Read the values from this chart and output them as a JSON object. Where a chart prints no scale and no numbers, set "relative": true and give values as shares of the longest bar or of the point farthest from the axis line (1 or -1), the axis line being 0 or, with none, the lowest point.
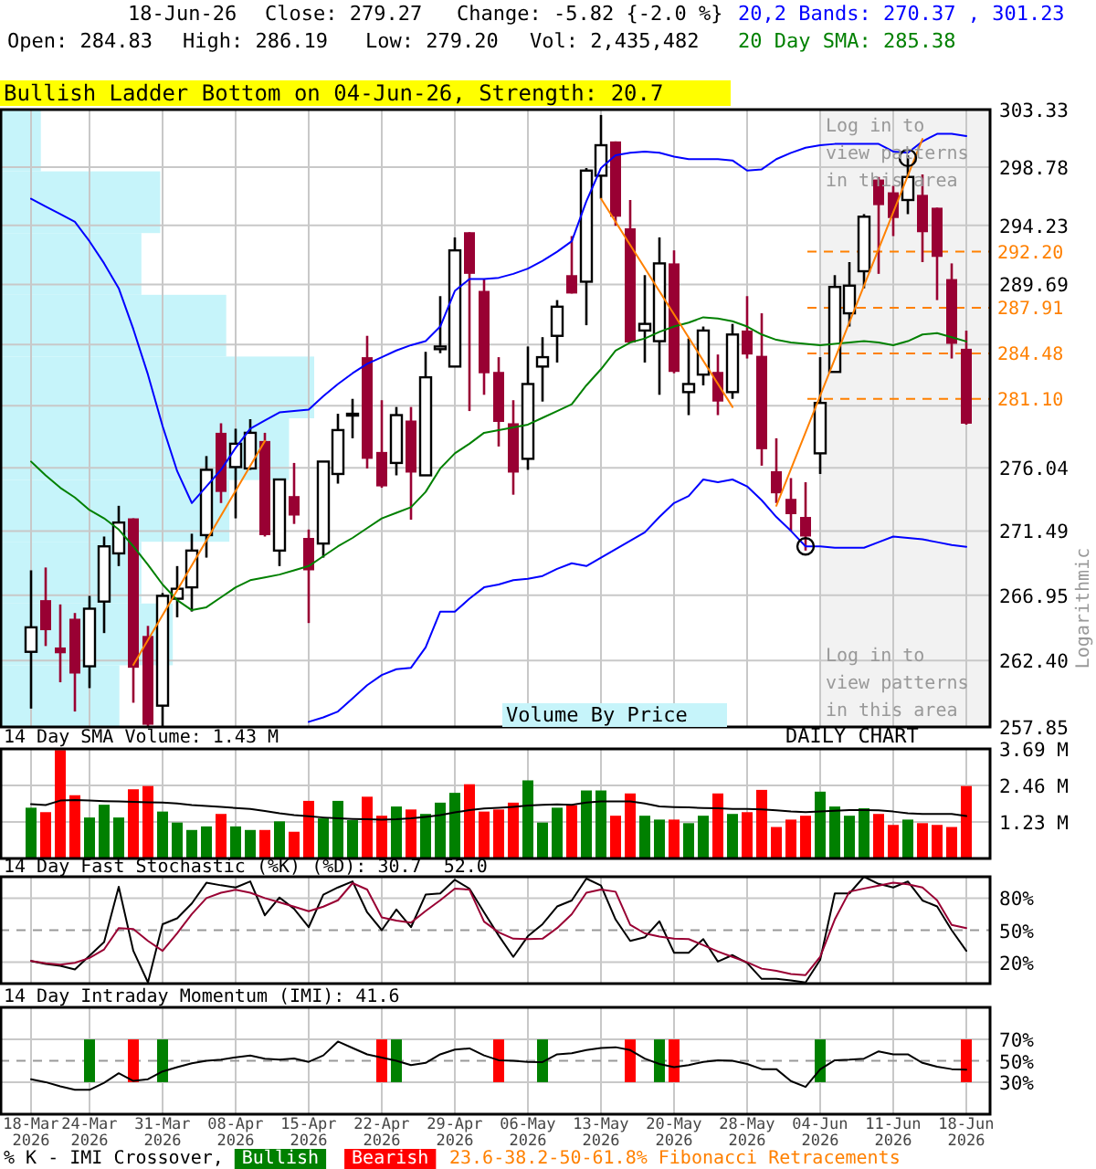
{
  "chart_data": [
    {
      "type": "candlestick",
      "title": "Bullish Ladder Bottom on 04-Jun-26, Strength: 20.7",
      "ylabel": "Logarithmic",
      "annotations": [
        "18-Jun-26",
        "Close: 279.27",
        "Change: -5.82 {-2.0 %}",
        "Open: 284.83",
        "High: 286.19",
        "Low: 279.20",
        "Vol: 2,435,482",
        "Log in to view patterns in this area",
        "Log in to view patterns in this area",
        "23.6-38.2-50-61.8% Fibonacci Retracements",
        "Volume By Price"
      ],
      "categories": [
        null,
        null,
        null,
        null,
        null,
        null,
        null,
        null,
        null,
        null,
        null,
        null,
        null,
        null,
        null,
        null,
        null,
        null,
        null,
        null,
        null,
        null,
        null,
        null,
        null,
        null,
        null,
        null,
        null,
        null,
        null,
        null,
        null,
        null,
        null,
        null,
        null,
        null,
        null,
        null,
        null,
        null,
        null,
        null,
        null,
        null,
        null,
        null,
        null,
        null,
        null,
        null,
        null,
        null,
        null,
        null,
        null,
        null,
        null,
        null,
        null,
        null,
        null,
        null,
        null
      ],
      "ohlc": [
        [
          263.0,
          268.7,
          259.1,
          264.7
        ],
        [
          266.6,
          268.9,
          263.4,
          264.5
        ],
        [
          263.3,
          266.3,
          260.9,
          262.9
        ],
        [
          265.3,
          265.7,
          258.9,
          261.5
        ],
        [
          262.0,
          266.9,
          260.5,
          266.0
        ],
        [
          266.5,
          271.1,
          264.3,
          270.4
        ],
        [
          269.9,
          273.3,
          269.0,
          272.1
        ],
        [
          272.4,
          272.4,
          259.5,
          261.9
        ],
        [
          264.1,
          264.8,
          257.9,
          258.0
        ],
        [
          259.3,
          267.1,
          257.9,
          266.9
        ],
        [
          266.7,
          269.0,
          265.4,
          267.4
        ],
        [
          267.5,
          271.3,
          265.8,
          270.1
        ],
        [
          271.2,
          276.9,
          269.6,
          275.9
        ],
        [
          278.6,
          279.3,
          273.5,
          274.3
        ],
        [
          276.1,
          278.9,
          272.4,
          277.8
        ],
        [
          276.0,
          279.6,
          275.9,
          278.6
        ],
        [
          278.0,
          278.6,
          271.1,
          271.2
        ],
        [
          270.1,
          275.2,
          269.0,
          275.2
        ],
        [
          274.0,
          276.4,
          272.0,
          272.6
        ],
        [
          271.0,
          271.6,
          265.0,
          268.7
        ],
        [
          270.6,
          276.5,
          269.6,
          276.5
        ],
        [
          275.6,
          280.0,
          274.9,
          278.8
        ],
        [
          279.9,
          281.1,
          278.2,
          280.0
        ],
        [
          284.2,
          285.8,
          276.0,
          276.7
        ],
        [
          277.2,
          281.0,
          274.6,
          274.7
        ],
        [
          276.4,
          280.5,
          275.5,
          279.9
        ],
        [
          279.5,
          280.5,
          272.3,
          275.7
        ],
        [
          275.5,
          284.6,
          275.5,
          282.7
        ],
        [
          284.8,
          288.8,
          284.5,
          285.0
        ],
        [
          283.5,
          293.3,
          283.5,
          292.3
        ],
        [
          293.7,
          293.7,
          280.2,
          290.5
        ],
        [
          289.2,
          290.1,
          281.4,
          283.0
        ],
        [
          283.1,
          284.2,
          277.6,
          279.4
        ],
        [
          279.3,
          281.0,
          274.1,
          275.7
        ],
        [
          276.7,
          285.0,
          275.9,
          282.2
        ],
        [
          283.5,
          285.7,
          280.9,
          284.2
        ],
        [
          285.8,
          288.5,
          283.8,
          288.0
        ],
        [
          290.4,
          293.4,
          289.0,
          289.0
        ],
        [
          289.9,
          298.7,
          286.6,
          298.5
        ],
        [
          298.1,
          302.9,
          296.3,
          300.5
        ],
        [
          300.8,
          300.8,
          294.2,
          294.9
        ],
        [
          294.0,
          296.2,
          285.3,
          285.3
        ],
        [
          286.2,
          290.4,
          283.8,
          286.7
        ],
        [
          285.4,
          293.3,
          281.4,
          291.3
        ],
        [
          291.3,
          292.3,
          283.0,
          283.1
        ],
        [
          281.6,
          285.6,
          279.9,
          282.2
        ],
        [
          282.9,
          286.5,
          282.1,
          286.2
        ],
        [
          283.1,
          284.4,
          279.9,
          280.9
        ],
        [
          281.6,
          286.7,
          281.1,
          285.9
        ],
        [
          286.2,
          288.8,
          284.1,
          284.4
        ],
        [
          284.3,
          287.5,
          276.2,
          277.4
        ],
        [
          275.8,
          278.2,
          273.5,
          274.2
        ],
        [
          273.8,
          275.3,
          271.5,
          272.7
        ],
        [
          272.5,
          275.0,
          270.1,
          271.1
        ],
        [
          277.1,
          284.2,
          275.6,
          280.8
        ],
        [
          283.1,
          290.4,
          283.1,
          289.5
        ],
        [
          287.5,
          291.4,
          286.5,
          289.6
        ],
        [
          290.7,
          295.1,
          289.4,
          294.9
        ],
        [
          297.8,
          298.0,
          290.5,
          295.8
        ],
        [
          296.8,
          297.3,
          293.4,
          294.8
        ],
        [
          296.2,
          299.7,
          295.1,
          298.0
        ],
        [
          296.6,
          298.2,
          291.4,
          293.7
        ],
        [
          295.6,
          295.6,
          288.5,
          291.8
        ],
        [
          290.1,
          291.3,
          284.1,
          285.2
        ],
        [
          284.83,
          286.19,
          279.2,
          279.27
        ]
      ],
      "series": [
        {
          "type": "line",
          "name": "20,2 Bands: 270.37 , 301.23",
          "color": "#0000ff",
          "values": [
            296.3,
            295.7,
            295.1,
            294.5,
            293.0,
            291.3,
            289.4,
            286.3,
            282.9,
            279.1,
            275.8,
            273.5,
            274.7,
            275.9,
            277.5,
            278.9,
            279.5,
            280.1,
            280.2,
            280.3,
            281.3,
            282.2,
            283.0,
            283.7,
            284.2,
            284.7,
            285.1,
            285.4,
            286.5,
            289.2,
            290.1,
            290.1,
            290.2,
            290.5,
            290.9,
            291.5,
            292.2,
            293.0,
            296.1,
            298.7,
            299.7,
            299.9,
            300.0,
            299.9,
            299.6,
            299.4,
            299.4,
            299.4,
            299.3,
            298.5,
            298.6,
            299.4,
            299.9,
            300.3,
            300.5,
            300.6,
            300.6,
            300.6,
            300.6,
            300.0,
            299.9,
            300.8,
            301.4,
            301.4,
            301.23
          ]
        },
        {
          "type": "line",
          "name": "20 Day SMA: 285.38",
          "color": "#008000",
          "values": [
            276.5,
            275.5,
            274.6,
            273.9,
            273.0,
            272.4,
            271.6,
            270.4,
            269.1,
            267.7,
            266.6,
            265.9,
            266.1,
            266.8,
            267.5,
            268.0,
            268.2,
            268.4,
            268.7,
            269.0,
            269.7,
            270.4,
            271.0,
            271.7,
            272.4,
            272.8,
            273.2,
            274.3,
            276.0,
            277.1,
            277.8,
            278.6,
            278.8,
            279.0,
            279.2,
            279.7,
            280.2,
            280.7,
            282.1,
            283.3,
            284.7,
            285.3,
            285.6,
            286.1,
            286.5,
            286.8,
            287.2,
            287.1,
            286.9,
            286.5,
            285.9,
            285.5,
            285.3,
            285.2,
            285.1,
            285.2,
            285.3,
            285.4,
            285.3,
            285.1,
            285.4,
            285.9,
            286.0,
            285.7,
            285.38
          ]
        },
        {
          "type": "line",
          "color": "#0000ff",
          "values": [
            null,
            null,
            null,
            null,
            null,
            null,
            null,
            null,
            null,
            null,
            null,
            null,
            null,
            null,
            null,
            null,
            null,
            null,
            null,
            258.2,
            258.5,
            258.9,
            259.8,
            260.7,
            261.4,
            261.8,
            261.9,
            263.3,
            265.8,
            265.8,
            266.7,
            267.5,
            267.7,
            268.0,
            268.1,
            268.3,
            268.8,
            269.2,
            269.0,
            269.6,
            270.2,
            270.8,
            271.4,
            272.5,
            273.5,
            274.0,
            275.2,
            275.0,
            275.2,
            274.7,
            273.7,
            272.5,
            271.5,
            270.4,
            270.4,
            270.3,
            270.3,
            270.3,
            270.7,
            271.1,
            271.0,
            270.9,
            270.7,
            270.5,
            270.37
          ]
        },
        {
          "type": "line",
          "color": "#ff8000",
          "values": [
            null,
            null,
            null,
            null,
            null,
            null,
            null,
            262.1,
            null,
            null,
            null,
            null,
            null,
            null,
            null,
            null,
            278.0,
            null,
            null,
            null,
            null,
            null,
            null,
            null,
            null,
            null,
            null,
            null,
            null,
            null,
            null,
            null,
            null,
            null,
            null,
            null,
            null,
            null,
            null,
            null,
            null,
            null,
            null,
            null,
            null,
            null,
            null,
            null,
            null,
            null,
            null,
            null,
            null,
            null,
            null,
            null,
            null,
            null,
            null,
            null,
            null,
            null,
            null,
            null,
            null
          ]
        },
        {
          "type": "line",
          "color": "#ff8000",
          "values": [
            null,
            null,
            null,
            null,
            null,
            null,
            null,
            null,
            null,
            null,
            null,
            null,
            null,
            null,
            null,
            null,
            null,
            null,
            null,
            null,
            null,
            null,
            null,
            null,
            null,
            null,
            null,
            null,
            null,
            null,
            null,
            null,
            null,
            null,
            null,
            null,
            null,
            null,
            null,
            296.3,
            null,
            null,
            null,
            null,
            null,
            null,
            null,
            null,
            280.5,
            null,
            null,
            null,
            null,
            null,
            null,
            null,
            null,
            null,
            null,
            null,
            null,
            null,
            null,
            null,
            null
          ]
        },
        {
          "type": "line",
          "color": "#ff8000",
          "values": [
            null,
            null,
            null,
            null,
            null,
            null,
            null,
            null,
            null,
            null,
            null,
            null,
            null,
            null,
            null,
            null,
            null,
            null,
            null,
            null,
            null,
            null,
            null,
            null,
            null,
            null,
            null,
            null,
            null,
            null,
            null,
            null,
            null,
            null,
            null,
            null,
            null,
            null,
            null,
            null,
            null,
            null,
            null,
            null,
            null,
            null,
            null,
            null,
            null,
            null,
            null,
            273.3,
            null,
            null,
            null,
            null,
            null,
            null,
            null,
            null,
            null,
            301.0,
            null,
            null,
            null
          ]
        },
        {
          "type": "scatter",
          "color": "#000000",
          "marker": "circle",
          "values": [
            null,
            null,
            null,
            null,
            null,
            null,
            null,
            null,
            null,
            null,
            null,
            null,
            null,
            null,
            null,
            null,
            null,
            null,
            null,
            null,
            null,
            null,
            null,
            null,
            null,
            null,
            null,
            null,
            null,
            null,
            null,
            null,
            null,
            null,
            null,
            null,
            null,
            null,
            null,
            null,
            null,
            null,
            null,
            null,
            null,
            null,
            null,
            null,
            null,
            null,
            null,
            null,
            null,
            270.4,
            null,
            null,
            null,
            null,
            null,
            null,
            299.5,
            null,
            null,
            null,
            null
          ]
        }
      ],
      "ylim": [
        257.85,
        303.33
      ],
      "yticks": [
        303.33,
        298.78,
        294.23,
        289.69,
        {
          "value": 285.14,
          "label": null
        },
        {
          "value": 280.59,
          "label": null
        },
        276.04,
        271.49,
        266.95,
        {
          "value": 262.4,
          "label": "262.40"
        },
        257.85
      ],
      "log": true,
      "grid": true,
      "legend": "top right",
      "tick_labels": "y",
      "ref_lines": [
        {
          "axis": "y",
          "value": 292.2,
          "label": "292.20",
          "color": "#ff8000",
          "line_style": "dashed"
        },
        {
          "axis": "y",
          "value": 287.91,
          "label": "287.91",
          "color": "#ff8000",
          "line_style": "dashed"
        },
        {
          "axis": "y",
          "value": 284.48,
          "label": "284.48",
          "color": "#ff8000",
          "line_style": "dashed"
        },
        {
          "axis": "y",
          "value": 281.1,
          "label": "281.10",
          "color": "#ff8000",
          "line_style": "dashed"
        }
      ]
    },
    {
      "type": "bar",
      "orientation": "horizontal",
      "relative": true,
      "categories": [
        null,
        null,
        null,
        null,
        null,
        null,
        null,
        null,
        null,
        null
      ],
      "values": [
        0.13,
        0.51,
        0.45,
        0.72,
        1,
        0.92,
        0.73,
        0.45,
        0.55,
        0.38
      ],
      "color": "#c6f4fa",
      "tick_labels": false
    },
    {
      "type": "bar",
      "title": "14 Day SMA Volume: 1.43 M",
      "annotations": [
        "DAILY CHART"
      ],
      "categories": [
        null,
        null,
        null,
        null,
        null,
        null,
        null,
        null,
        null,
        null,
        null,
        null,
        null,
        null,
        null,
        null,
        null,
        null,
        null,
        null,
        null,
        null,
        null,
        null,
        null,
        null,
        null,
        null,
        null,
        null,
        null,
        null,
        null,
        null,
        null,
        null,
        null,
        null,
        null,
        null,
        null,
        null,
        null,
        null,
        null,
        null,
        null,
        null,
        null,
        null,
        null,
        null,
        null,
        null,
        null,
        null,
        null,
        null,
        null,
        null,
        null,
        null,
        null,
        null,
        null
      ],
      "series": [
        {
          "colors": [
            "#008000",
            "#ff0000",
            "#ff0000",
            "#ff0000",
            "#008000",
            "#008000",
            "#008000",
            "#ff0000",
            "#ff0000",
            "#008000",
            "#008000",
            "#008000",
            "#008000",
            "#ff0000",
            "#008000",
            "#008000",
            "#ff0000",
            "#008000",
            "#ff0000",
            "#ff0000",
            "#008000",
            "#008000",
            "#008000",
            "#ff0000",
            "#ff0000",
            "#008000",
            "#ff0000",
            "#008000",
            "#008000",
            "#008000",
            "#ff0000",
            "#ff0000",
            "#ff0000",
            "#ff0000",
            "#008000",
            "#008000",
            "#008000",
            "#ff0000",
            "#008000",
            "#008000",
            "#ff0000",
            "#ff0000",
            "#008000",
            "#008000",
            "#ff0000",
            "#008000",
            "#008000",
            "#ff0000",
            "#008000",
            "#ff0000",
            "#ff0000",
            "#ff0000",
            "#ff0000",
            "#ff0000",
            "#008000",
            "#008000",
            "#008000",
            "#008000",
            "#ff0000",
            "#ff0000",
            "#008000",
            "#ff0000",
            "#ff0000",
            "#ff0000",
            "#ff0000"
          ],
          "values": [
            1.71,
            1.56,
            3.65,
            2.13,
            1.38,
            1.81,
            1.38,
            2.33,
            2.44,
            1.58,
            1.21,
            0.96,
            1.08,
            1.5,
            1.08,
            0.96,
            0.96,
            1.25,
            0.9,
            1.94,
            1.35,
            1.94,
            1.29,
            2.08,
            1.44,
            1.75,
            1.65,
            1.5,
            1.88,
            2.21,
            2.5,
            1.58,
            1.65,
            1.88,
            2.63,
            1.21,
            1.71,
            1.79,
            2.29,
            2.29,
            1.44,
            2.19,
            1.44,
            1.31,
            1.31,
            1.19,
            1.44,
            2.19,
            1.5,
            1.56,
            2.31,
            1.06,
            1.31,
            1.44,
            2.25,
            1.75,
            1.44,
            1.69,
            1.5,
            1.13,
            1.31,
            1.19,
            1.13,
            1.06,
            2.44
          ]
        },
        {
          "type": "line",
          "color": "#000000",
          "values": [
            1.83,
            1.8,
            1.95,
            1.97,
            1.95,
            1.93,
            1.92,
            1.91,
            1.89,
            1.88,
            1.85,
            1.8,
            1.77,
            1.74,
            1.7,
            1.67,
            1.6,
            1.52,
            1.46,
            1.42,
            1.38,
            1.35,
            1.33,
            1.32,
            1.31,
            1.32,
            1.35,
            1.4,
            1.46,
            1.55,
            1.63,
            1.68,
            1.71,
            1.74,
            1.78,
            1.81,
            1.82,
            1.81,
            1.88,
            1.92,
            1.92,
            1.92,
            1.85,
            1.75,
            1.73,
            1.72,
            1.7,
            1.69,
            1.67,
            1.67,
            1.65,
            1.62,
            1.58,
            1.56,
            1.58,
            1.61,
            1.63,
            1.63,
            1.62,
            1.58,
            1.52,
            1.5,
            1.5,
            1.5,
            1.43
          ]
        }
      ],
      "ylim": [
        0,
        3.69
      ],
      "yticks": [
        {
          "value": 1.23,
          "label": "1.23 M"
        },
        {
          "value": 2.46,
          "label": "2.46 M"
        },
        {
          "value": 3.69,
          "label": "3.69 M"
        }
      ],
      "grid": true,
      "tick_labels": "y"
    },
    {
      "type": "line",
      "title": "14 Day Fast Stochastic (%K) (%D): 30.7  52.0",
      "categories": [
        null,
        null,
        null,
        null,
        null,
        null,
        null,
        null,
        null,
        null,
        null,
        null,
        null,
        null,
        null,
        null,
        null,
        null,
        null,
        null,
        null,
        null,
        null,
        null,
        null,
        null,
        null,
        null,
        null,
        null,
        null,
        null,
        null,
        null,
        null,
        null,
        null,
        null,
        null,
        null,
        null,
        null,
        null,
        null,
        null,
        null,
        null,
        null,
        null,
        null,
        null,
        null,
        null,
        null,
        null,
        null,
        null,
        null,
        null,
        null,
        null,
        null,
        null,
        null,
        null
      ],
      "series": [
        {
          "color": "#000000",
          "values": [
            21.1,
            18.3,
            16.7,
            13.3,
            26,
            38.9,
            90.6,
            30.6,
            1.1,
            55.6,
            61.1,
            75,
            94.4,
            92,
            90,
            95.6,
            63.9,
            80.6,
            70,
            52.8,
            83.3,
            90,
            95.6,
            66.7,
            50,
            69.4,
            52.8,
            83.3,
            84.4,
            97.2,
            88.9,
            66.7,
            45,
            25,
            44.4,
            55.6,
            72.2,
            77.8,
            98.3,
            91.7,
            60,
            40,
            43.3,
            58.3,
            28.9,
            28.9,
            41.7,
            20.6,
            26.7,
            19.4,
            4.4,
            4.4,
            3,
            1.1,
            22.2,
            84.4,
            84.4,
            100,
            93.3,
            90,
            95.6,
            77.8,
            72.2,
            50,
            30.7
          ]
        },
        {
          "color": "#990033",
          "values": [
            21.1,
            19,
            17.8,
            19.4,
            24,
            32,
            52,
            51.1,
            40,
            30.6,
            47.2,
            65,
            80,
            85,
            87.8,
            85,
            80,
            76,
            72,
            67.8,
            72,
            78,
            94,
            88,
            62,
            59,
            57,
            68,
            78,
            88.9,
            88,
            58,
            48,
            42,
            41.7,
            42,
            52,
            65,
            85,
            88,
            86,
            55,
            47,
            44,
            42,
            41.7,
            36,
            30,
            25,
            20,
            14,
            12,
            9,
            8,
            25,
            60,
            86,
            89,
            91.7,
            94.4,
            93,
            90,
            78,
            55,
            52.0
          ]
        }
      ],
      "ylim": [
        0,
        100
      ],
      "yticks": [
        {
          "value": 20,
          "label": "20%"
        },
        {
          "value": 50,
          "label": "50%"
        },
        {
          "value": 80,
          "label": "80%"
        }
      ],
      "grid": true,
      "tick_labels": "y",
      "ref_lines": [
        {
          "axis": "y",
          "value": 50,
          "color": "#999999",
          "line_style": "dashed"
        }
      ]
    },
    {
      "type": "line",
      "title": "14 Day Intraday Momentum (IMI): 41.6",
      "legend_title": "% K - IMI Crossover,",
      "legend": "bottom",
      "categories": [
        "18-Mar 2026",
        null,
        null,
        null,
        "24-Mar 2026",
        null,
        null,
        null,
        null,
        "31-Mar 2026",
        null,
        null,
        null,
        null,
        "08-Apr 2026",
        null,
        null,
        null,
        null,
        "15-Apr 2026",
        null,
        null,
        null,
        null,
        "22-Apr 2026",
        null,
        null,
        null,
        null,
        "29-Apr 2026",
        null,
        null,
        null,
        null,
        "06-May 2026",
        null,
        null,
        null,
        null,
        "13-May 2026",
        null,
        null,
        null,
        null,
        "20-May 2026",
        null,
        null,
        null,
        null,
        "28-May 2026",
        null,
        null,
        null,
        null,
        "04-Jun 2026",
        null,
        null,
        null,
        null,
        "11-Jun 2026",
        null,
        null,
        null,
        null,
        "18-Jun 2026"
      ],
      "series": [
        {
          "type": "bar",
          "name": "Bullish",
          "color": "#008000",
          "base": [
            null,
            null,
            null,
            null,
            30,
            null,
            null,
            null,
            null,
            30,
            null,
            null,
            null,
            null,
            null,
            null,
            null,
            null,
            null,
            null,
            null,
            null,
            null,
            null,
            null,
            30,
            null,
            null,
            null,
            null,
            null,
            null,
            null,
            null,
            null,
            30,
            null,
            null,
            null,
            null,
            null,
            null,
            null,
            30,
            null,
            null,
            null,
            null,
            null,
            null,
            null,
            null,
            null,
            null,
            30,
            null,
            null,
            null,
            null,
            null,
            null,
            null,
            null,
            null,
            null
          ],
          "values": [
            null,
            null,
            null,
            null,
            40,
            null,
            null,
            null,
            null,
            40,
            null,
            null,
            null,
            null,
            null,
            null,
            null,
            null,
            null,
            null,
            null,
            null,
            null,
            null,
            null,
            40,
            null,
            null,
            null,
            null,
            null,
            null,
            null,
            null,
            null,
            40,
            null,
            null,
            null,
            null,
            null,
            null,
            null,
            40,
            null,
            null,
            null,
            null,
            null,
            null,
            null,
            null,
            null,
            null,
            40,
            null,
            null,
            null,
            null,
            null,
            null,
            null,
            null,
            null,
            null
          ]
        },
        {
          "type": "bar",
          "name": "Bearish",
          "color": "#ff0000",
          "base": [
            null,
            null,
            null,
            null,
            null,
            null,
            null,
            30,
            null,
            null,
            null,
            null,
            null,
            null,
            null,
            null,
            null,
            null,
            null,
            null,
            null,
            null,
            null,
            null,
            30,
            null,
            null,
            null,
            null,
            null,
            null,
            null,
            30,
            null,
            null,
            null,
            null,
            null,
            null,
            null,
            null,
            30,
            null,
            null,
            30,
            null,
            null,
            null,
            null,
            null,
            null,
            null,
            null,
            null,
            null,
            null,
            null,
            null,
            null,
            null,
            null,
            null,
            null,
            null,
            30
          ],
          "values": [
            null,
            null,
            null,
            null,
            null,
            null,
            null,
            40,
            null,
            null,
            null,
            null,
            null,
            null,
            null,
            null,
            null,
            null,
            null,
            null,
            null,
            null,
            null,
            null,
            40,
            null,
            null,
            null,
            null,
            null,
            null,
            null,
            40,
            null,
            null,
            null,
            null,
            null,
            null,
            null,
            null,
            40,
            null,
            null,
            40,
            null,
            null,
            null,
            null,
            null,
            null,
            null,
            null,
            null,
            null,
            null,
            null,
            null,
            null,
            null,
            null,
            null,
            null,
            null,
            40
          ]
        },
        {
          "color": "#000000",
          "values": [
            32.7,
            30,
            26,
            22.8,
            22.8,
            29.4,
            38.3,
            31.1,
            32.7,
            40,
            44,
            47.7,
            50,
            51,
            53.3,
            55,
            52,
            51,
            52.2,
            49,
            55,
            68,
            62,
            56,
            53,
            50,
            46,
            48,
            56,
            60.5,
            61.6,
            55,
            50.5,
            50,
            49,
            48.8,
            56,
            57,
            60,
            62,
            62.7,
            60,
            52,
            47,
            44,
            46,
            49,
            50.5,
            50,
            47,
            42.2,
            42.2,
            31,
            25.5,
            42,
            50.5,
            51,
            52,
            58.8,
            56,
            56,
            48,
            44.5,
            42.2,
            41.6
          ]
        }
      ],
      "ylim": [
        0,
        100
      ],
      "yticks": [
        {
          "value": 30,
          "label": "30%"
        },
        {
          "value": 50,
          "label": "50%"
        },
        {
          "value": 70,
          "label": "70%"
        }
      ],
      "grid": true,
      "ref_lines": [
        {
          "axis": "y",
          "value": 50,
          "color": "#999999",
          "line_style": "dashed"
        }
      ]
    }
  ]
}
